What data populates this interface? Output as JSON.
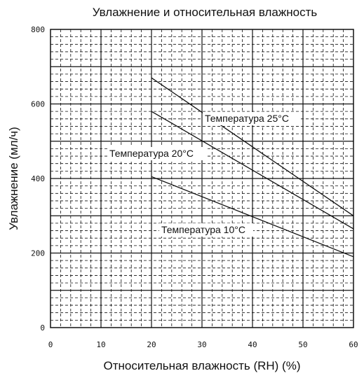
{
  "chart_data": {
    "type": "line",
    "title": "Увлажнение и относительная влажность",
    "xlabel": "Относительная влажность (RH) (%)",
    "ylabel": "Увлажнение (мл/ч)",
    "xlim": [
      0,
      60
    ],
    "ylim": [
      0,
      800
    ],
    "xticks": [
      "0",
      "10",
      "20",
      "30",
      "40",
      "50",
      "60"
    ],
    "yticks": [
      "0",
      "200",
      "400",
      "600",
      "800"
    ],
    "grid": true,
    "legend": "none",
    "series": [
      {
        "name": "Температура 25°C",
        "x": [
          20,
          60
        ],
        "y": [
          670,
          300
        ]
      },
      {
        "name": "Температура 20°C",
        "x": [
          20,
          60
        ],
        "y": [
          580,
          265
        ]
      },
      {
        "name": "Температура 10°C",
        "x": [
          20,
          60
        ],
        "y": [
          405,
          190
        ]
      }
    ],
    "colors": {
      "line": "#111111",
      "grid": "#111111"
    }
  }
}
